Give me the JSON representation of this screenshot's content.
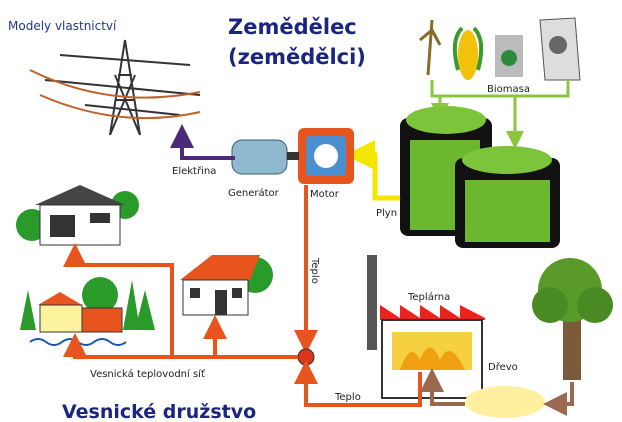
{
  "header": {
    "title": "Modely vlastnictví"
  },
  "owner": {
    "line1": "Zemědělec",
    "line2": "(zemědělci)"
  },
  "labels": {
    "biomass": "Biomasa",
    "electricity": "Elektřina",
    "generator": "Generátor",
    "motor": "Motor",
    "gas": "Plyn",
    "heat_motor": "Teplo",
    "heating_plant": "Teplárna",
    "wood": "Dřevo",
    "network": "Vesnická teplovodní síť",
    "heat_plant": "Teplo"
  },
  "footer": {
    "title": "Vesnické družstvo"
  }
}
